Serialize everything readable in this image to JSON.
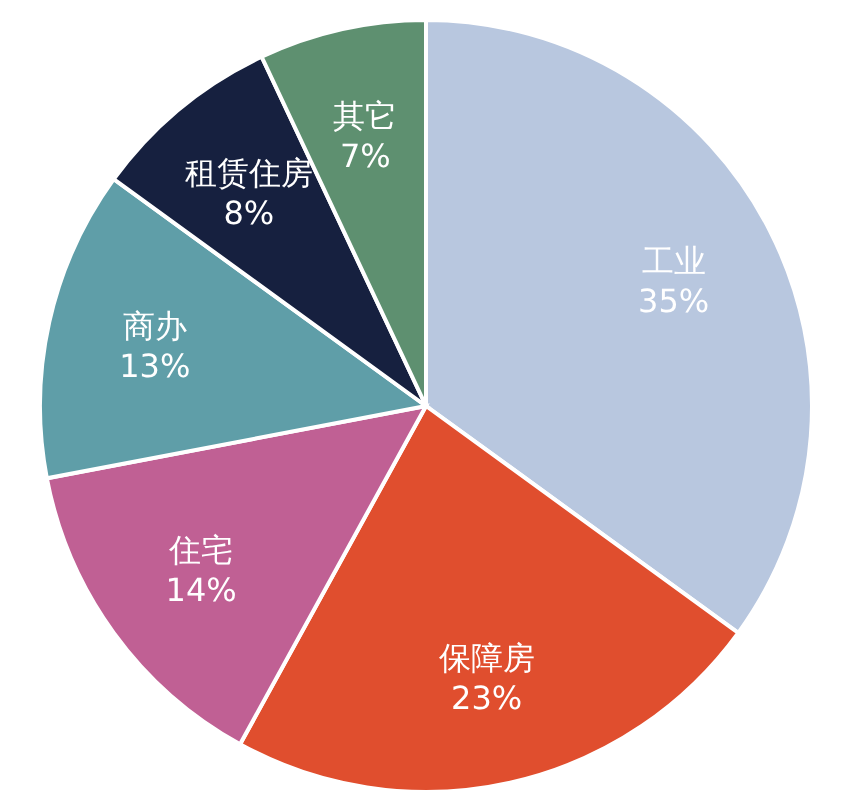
{
  "chart_data": {
    "type": "pie",
    "categories": [
      "工业",
      "保障房",
      "住宅",
      "商办",
      "租赁住房",
      "其它"
    ],
    "values": [
      35,
      23,
      14,
      13,
      8,
      7
    ],
    "colors": [
      "#b8c7df",
      "#e04e2e",
      "#c06094",
      "#5f9ea8",
      "#16203f",
      "#5e9070"
    ],
    "value_labels": [
      "35%",
      "23%",
      "14%",
      "13%",
      "8%",
      "7%"
    ]
  }
}
